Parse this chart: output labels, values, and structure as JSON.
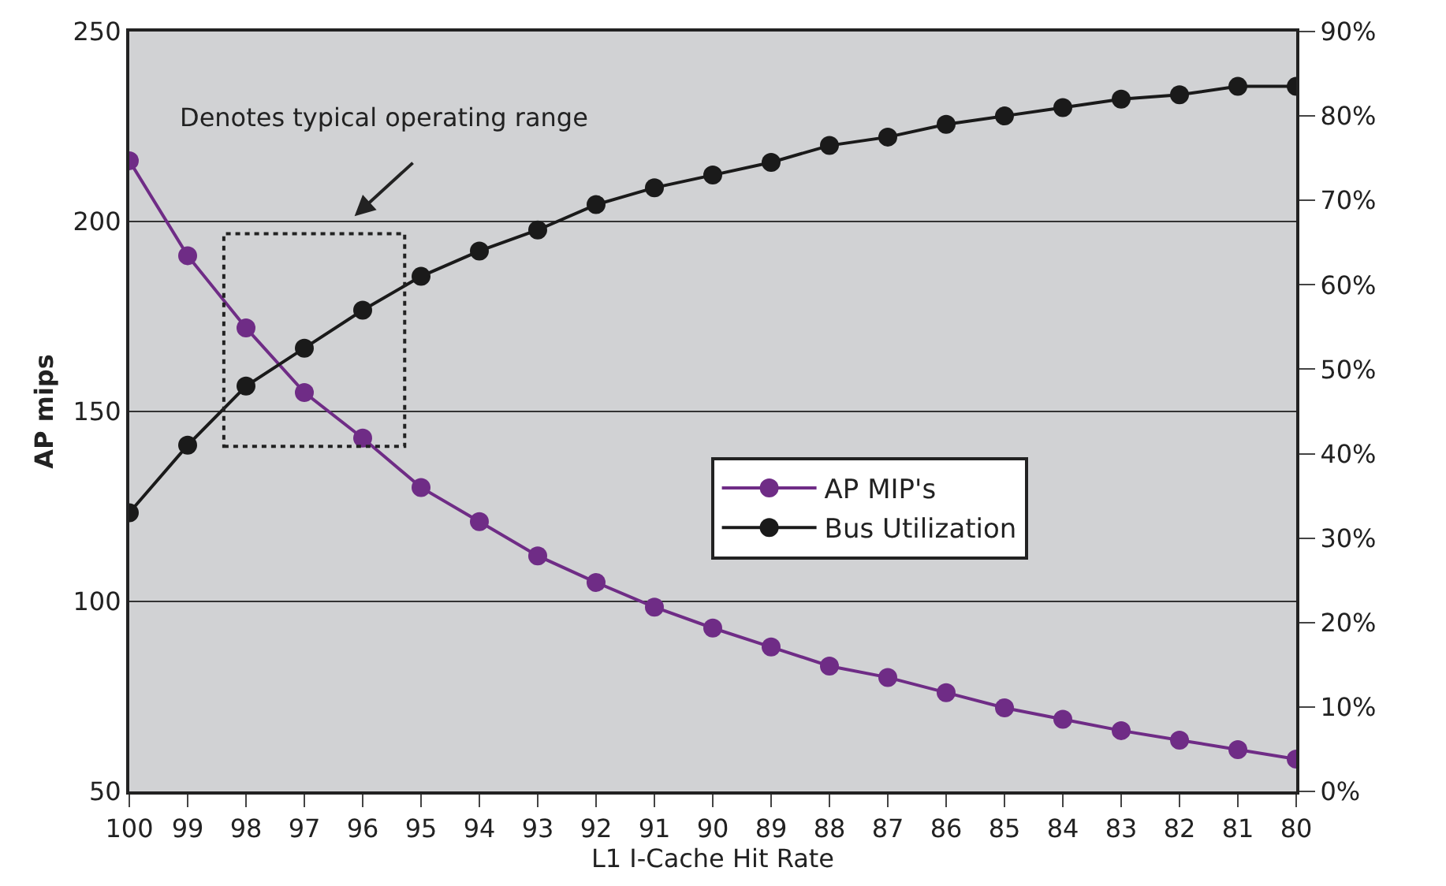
{
  "chart_data": {
    "type": "line",
    "xlabel": "L1 I-Cache Hit Rate",
    "ylabel": "AP mips",
    "x": [
      100,
      99,
      98,
      97,
      96,
      95,
      94,
      93,
      92,
      91,
      90,
      89,
      88,
      87,
      86,
      85,
      84,
      83,
      82,
      81,
      80
    ],
    "series": [
      {
        "name": "AP MIP's",
        "color": "#6f2c86",
        "values": [
          216,
          191,
          172,
          155,
          143,
          130,
          121,
          112,
          105,
          98.5,
          93,
          88,
          83,
          80,
          76,
          72,
          69,
          66,
          63.5,
          61,
          58.5
        ]
      },
      {
        "name": "Bus Utilization",
        "color": "#1a1a1a",
        "axis": "y2",
        "values": [
          33,
          41,
          48,
          52.5,
          57,
          61,
          64,
          66.5,
          69.5,
          71.5,
          73,
          74.5,
          76.5,
          77.5,
          79,
          80,
          81,
          82,
          82.5,
          83.5,
          83.5
        ]
      }
    ],
    "xlim": [
      100,
      80
    ],
    "xticks": [
      100,
      99,
      98,
      97,
      96,
      95,
      94,
      93,
      92,
      91,
      90,
      89,
      88,
      87,
      86,
      85,
      84,
      83,
      82,
      81,
      80
    ],
    "ylim": [
      50,
      250
    ],
    "yticks": [
      50,
      100,
      150,
      200,
      250
    ],
    "y2lim": [
      0,
      90
    ],
    "y2ticks": [
      {
        "value": 0,
        "label": "0%"
      },
      {
        "value": 10,
        "label": "10%"
      },
      {
        "value": 20,
        "label": "20%"
      },
      {
        "value": 30,
        "label": "30%"
      },
      {
        "value": 40,
        "label": "40%"
      },
      {
        "value": 50,
        "label": "50%"
      },
      {
        "value": 60,
        "label": "60%"
      },
      {
        "value": 70,
        "label": "70%"
      },
      {
        "value": 80,
        "label": "80%"
      },
      {
        "value": 90,
        "label": "90%"
      }
    ],
    "annotations": [
      "Denotes typical operating range"
    ],
    "grid": "y",
    "legend": "bottom right",
    "marker": "circle",
    "line_style": "solid"
  }
}
